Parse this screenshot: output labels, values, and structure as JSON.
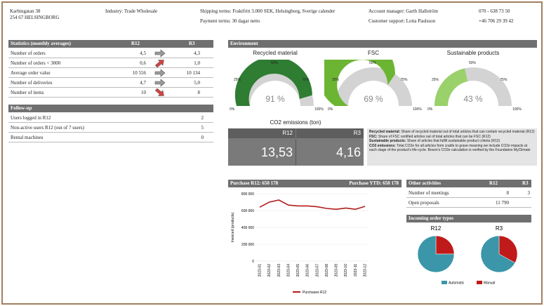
{
  "header": {
    "address_line1": "Karbingatan 38",
    "address_line2": "254 67 HELSINGBORG",
    "industry": "Industry: Trade Wholesale",
    "shipping_terms": "Shipping terms: Fraktfritt 3.000 SEK, Helsingborg, Sverige calender",
    "payment_terms": "Payment terms: 30 dagar netto",
    "account_manager": "Account manager: Garth Hallström",
    "customer_support": "Customer support: Lotta Paulsson",
    "phone1": "070 - 638 73 50",
    "phone2": "+46 706 29 39 42"
  },
  "statistics": {
    "title": "Statistics (monthly averages)",
    "col1": "R12",
    "col2": "R3",
    "rows": [
      {
        "label": "Number of orders",
        "r12": "4,5",
        "r3": "4,3",
        "trend": "flat"
      },
      {
        "label": "Number of orders < 3000",
        "r12": "0,6",
        "r3": "1,0",
        "trend": "up-bad"
      },
      {
        "label": "Average order value",
        "r12": "10 556",
        "r3": "10 134",
        "trend": "flat"
      },
      {
        "label": "Number of deliveries",
        "r12": "4,7",
        "r3": "5,0",
        "trend": "flat"
      },
      {
        "label": "Number of items",
        "r12": "10",
        "r3": "8",
        "trend": "down-bad"
      }
    ]
  },
  "followup": {
    "title": "Follow-up",
    "rows": [
      {
        "label": "Users logged in R12",
        "value": "2"
      },
      {
        "label": "Non-active users R12 (out of 7 users)",
        "value": "5"
      },
      {
        "label": "Rental machines",
        "value": "0"
      }
    ]
  },
  "environment": {
    "title": "Environment",
    "gauges": [
      {
        "title": "Recycled material",
        "value_label": "91 %",
        "fraction": 0.91,
        "color": "#2e7d32"
      },
      {
        "title": "FSC",
        "value_label": "69 %",
        "fraction": 0.69,
        "color": "#6bb533"
      },
      {
        "title": "Sustainable products",
        "value_label": "43 %",
        "fraction": 0.43,
        "color": "#9ad16a"
      }
    ],
    "ticks": [
      "0%",
      "25%",
      "50%",
      "75%",
      "100%"
    ],
    "co2": {
      "title": "CO2 emissions (ton)",
      "col1": "R12",
      "col2": "R3",
      "v1": "13,53",
      "v2": "4,16"
    },
    "notes": [
      {
        "term": "Recycled material:",
        "text": " Share of recycled material out of total articles that can contain recycled material (R12)"
      },
      {
        "term": "FSC:",
        "text": " Share of FSC certified articles out of total articles that can be FSC (R12)"
      },
      {
        "term": "Sustainable products:",
        "text": " Share of articles that fulfill sustainable product criteria (R12)"
      },
      {
        "term": "CO2 emissions:",
        "text": " Total CO2e for all articles from cradle to grave meaning we include CO2e impacts at each stage of the product's life-cycle. Boxon's CO2e calculation is verified by the Foundation MyClimate"
      }
    ]
  },
  "purchase": {
    "left": "Purchase R12: 650 178",
    "right": "Purchase YTD: 650 178"
  },
  "chart_data": [
    {
      "type": "line",
      "ylabel": "Invoiced (products)",
      "yticks": [
        "800 000",
        "600 000",
        "400 000",
        "200 000",
        "0"
      ],
      "ylim": [
        0,
        800000
      ],
      "x": [
        "2023-01",
        "2023-02",
        "2023-03",
        "2023-04",
        "2023-05",
        "2023-06",
        "2023-07",
        "2023-08",
        "2023-09",
        "2023-10",
        "2023-11",
        "2023-12"
      ],
      "series": [
        {
          "name": "Purchases R12",
          "color": "#b01c1c",
          "values": [
            640000,
            700000,
            725000,
            665000,
            655000,
            655000,
            645000,
            625000,
            615000,
            630000,
            615000,
            650000
          ]
        }
      ]
    },
    {
      "type": "pie",
      "title": "R12",
      "slices": [
        {
          "name": "Automatic",
          "value": 75,
          "color": "#3a96a8"
        },
        {
          "name": "Manual",
          "value": 25,
          "color": "#c01a1a"
        }
      ]
    },
    {
      "type": "pie",
      "title": "R3",
      "slices": [
        {
          "name": "Automatic",
          "value": 67,
          "color": "#3a96a8"
        },
        {
          "name": "Manual",
          "value": 33,
          "color": "#c01a1a"
        }
      ]
    }
  ],
  "other": {
    "title": "Other activities",
    "col1": "R12",
    "col2": "R3",
    "rows": [
      {
        "label": "Number of meetings",
        "r12": "8",
        "r3": "3"
      },
      {
        "label": "Open proposals",
        "r12": "11 790",
        "r3": ""
      }
    ]
  },
  "incoming": {
    "title": "Incoming order types",
    "legend": [
      "Automatic",
      "Manual"
    ]
  }
}
